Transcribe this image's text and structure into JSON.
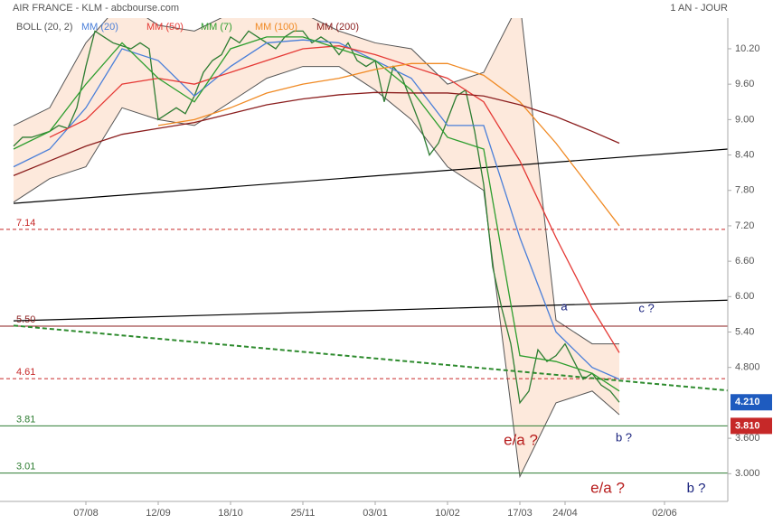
{
  "chart_data": {
    "type": "line",
    "title": "AIR FRANCE - KLM - abcbourse.com",
    "subtitle": "1 AN - JOUR",
    "indicators": [
      "BOLL (20, 2)"
    ],
    "ylim": [
      2.53,
      10.72
    ],
    "xlim": [
      0,
      79
    ],
    "yticks": [
      {
        "value": 10.2,
        "label": "10.20"
      },
      {
        "value": 9.6,
        "label": "9.60"
      },
      {
        "value": 9.0,
        "label": "9.00"
      },
      {
        "value": 8.4,
        "label": "8.40"
      },
      {
        "value": 7.8,
        "label": "7.80"
      },
      {
        "value": 7.2,
        "label": "7.20"
      },
      {
        "value": 6.6,
        "label": "6.60"
      },
      {
        "value": 6.0,
        "label": "6.00"
      },
      {
        "value": 5.4,
        "label": "5.40"
      },
      {
        "value": 4.8,
        "label": "4.800"
      },
      {
        "value": 3.6,
        "label": "3.600"
      },
      {
        "value": 3.0,
        "label": "3.000"
      }
    ],
    "xticks": [
      {
        "value": 8,
        "label": "07/08"
      },
      {
        "value": 16,
        "label": "12/09"
      },
      {
        "value": 24,
        "label": "18/10"
      },
      {
        "value": 32,
        "label": "25/11"
      },
      {
        "value": 40,
        "label": "03/01"
      },
      {
        "value": 48,
        "label": "10/02"
      },
      {
        "value": 56,
        "label": "17/03"
      },
      {
        "value": 61,
        "label": "24/04"
      },
      {
        "value": 72,
        "label": "02/06"
      }
    ],
    "price": {
      "color": "#2e7d32",
      "values": [
        8.55,
        8.7,
        8.7,
        8.75,
        8.8,
        8.9,
        8.85,
        9.2,
        9.9,
        10.5,
        10.4,
        10.3,
        10.25,
        10.2,
        10.3,
        10.2,
        9.0,
        9.1,
        9.2,
        9.1,
        9.4,
        9.8,
        10.0,
        10.1,
        10.4,
        10.3,
        10.5,
        10.4,
        10.3,
        10.2,
        10.4,
        10.5,
        10.5,
        10.3,
        10.4,
        10.3,
        10.1,
        10.3,
        10.0,
        9.9,
        10.0,
        9.3,
        9.9,
        9.7,
        9.3,
        8.9,
        8.4,
        8.6,
        9.0,
        9.4,
        9.5,
        8.8,
        7.9,
        6.5,
        5.8,
        5.2,
        4.2,
        4.4,
        5.1,
        4.9,
        5.0,
        5.2,
        4.9,
        4.6,
        4.7,
        4.5,
        4.4,
        4.21
      ]
    },
    "bands": {
      "color": "#fde3d3",
      "x": [
        0,
        4,
        8,
        12,
        16,
        20,
        24,
        28,
        32,
        36,
        40,
        44,
        48,
        52,
        56,
        60,
        64,
        67
      ],
      "upper": [
        8.9,
        9.2,
        10.3,
        11.0,
        10.6,
        10.5,
        10.8,
        11.0,
        10.8,
        10.5,
        10.3,
        10.2,
        9.6,
        9.8,
        11.0,
        5.6,
        5.2,
        5.2
      ],
      "lower": [
        7.6,
        8.0,
        8.2,
        9.2,
        9.0,
        8.9,
        9.3,
        9.7,
        9.9,
        9.9,
        9.5,
        9.0,
        8.2,
        7.8,
        2.95,
        4.2,
        4.4,
        4.0
      ]
    },
    "series": [
      {
        "name": "MM (20)",
        "color": "#4a7fd9",
        "x": [
          0,
          4,
          8,
          12,
          16,
          20,
          24,
          28,
          32,
          36,
          40,
          44,
          48,
          52,
          56,
          60,
          64,
          67
        ],
        "values": [
          8.2,
          8.5,
          9.2,
          10.2,
          10.0,
          9.4,
          9.9,
          10.3,
          10.35,
          10.3,
          10.0,
          9.7,
          8.9,
          8.9,
          7.0,
          5.4,
          4.8,
          4.6
        ]
      },
      {
        "name": "MM (50)",
        "color": "#e53935",
        "x": [
          4,
          8,
          12,
          16,
          20,
          24,
          28,
          32,
          36,
          40,
          44,
          48,
          52,
          56,
          60,
          64,
          67
        ],
        "values": [
          8.7,
          9.0,
          9.6,
          9.7,
          9.6,
          9.8,
          10.0,
          10.2,
          10.25,
          10.1,
          9.9,
          9.7,
          9.3,
          8.3,
          7.0,
          5.8,
          5.05
        ]
      },
      {
        "name": "MM (7)",
        "color": "#2e9e2e",
        "x": [
          0,
          4,
          8,
          12,
          16,
          20,
          24,
          28,
          32,
          36,
          40,
          44,
          48,
          52,
          56,
          60,
          64,
          67
        ],
        "values": [
          8.5,
          8.8,
          9.6,
          10.3,
          9.7,
          9.3,
          10.2,
          10.4,
          10.4,
          10.2,
          10.0,
          9.5,
          8.7,
          8.5,
          5.0,
          4.9,
          4.7,
          4.4
        ]
      },
      {
        "name": "MM (100)",
        "color": "#f08a24",
        "x": [
          16,
          20,
          24,
          28,
          32,
          36,
          40,
          44,
          48,
          52,
          56,
          60,
          64,
          67
        ],
        "values": [
          8.9,
          9.0,
          9.2,
          9.45,
          9.6,
          9.7,
          9.85,
          9.95,
          9.95,
          9.75,
          9.3,
          8.6,
          7.8,
          7.2
        ]
      },
      {
        "name": "MM (200)",
        "color": "#8b1e1e",
        "x": [
          0,
          4,
          8,
          12,
          16,
          20,
          24,
          28,
          32,
          36,
          40,
          44,
          48,
          52,
          56,
          60,
          64,
          67
        ],
        "values": [
          8.05,
          8.3,
          8.55,
          8.75,
          8.85,
          8.95,
          9.1,
          9.25,
          9.35,
          9.42,
          9.46,
          9.45,
          9.45,
          9.4,
          9.25,
          9.05,
          8.8,
          8.6
        ]
      }
    ],
    "levels": [
      {
        "value": 7.14,
        "color": "#c62828",
        "dash": true
      },
      {
        "value": {
          "value": 5.5,
          "label": "5.50"
        },
        "color": "#8b1e1e",
        "dash": false
      },
      {
        "value": 4.61,
        "color": "#c62828",
        "dash": true
      },
      {
        "value": 3.81,
        "color": "#2e7d32",
        "dash": false
      },
      {
        "value": 3.01,
        "color": "#2e7d32",
        "dash": false
      }
    ],
    "trendlines": [
      {
        "x": [
          0,
          79
        ],
        "values": [
          7.58,
          8.5
        ],
        "color": "#000",
        "dash": false
      },
      {
        "x": [
          0,
          79
        ],
        "values": [
          5.59,
          5.94
        ],
        "color": "#000",
        "dash": false
      },
      {
        "x": [
          0,
          79
        ],
        "values": [
          5.51,
          4.41
        ],
        "color": "#2e8b2e",
        "dash": true
      }
    ],
    "price_tags": [
      {
        "value": 4.21,
        "label": "4.210",
        "color": "#1e5bbf"
      },
      {
        "value": 3.81,
        "label": "3.810",
        "color": "#c62828"
      }
    ],
    "annotations": [
      {
        "text": "a",
        "color": "#1a237e",
        "size": 13
      },
      {
        "text": "c ?",
        "color": "#1a237e",
        "size": 13
      },
      {
        "text": "b ?",
        "color": "#1a237e",
        "size": 13
      },
      {
        "text": "e/a ?",
        "color": "#b71c1c",
        "size": 17
      },
      {
        "text": "e/a ?",
        "color": "#b71c1c",
        "size": 17
      },
      {
        "text": "b ?",
        "color": "#1a237e",
        "size": 15
      }
    ]
  }
}
